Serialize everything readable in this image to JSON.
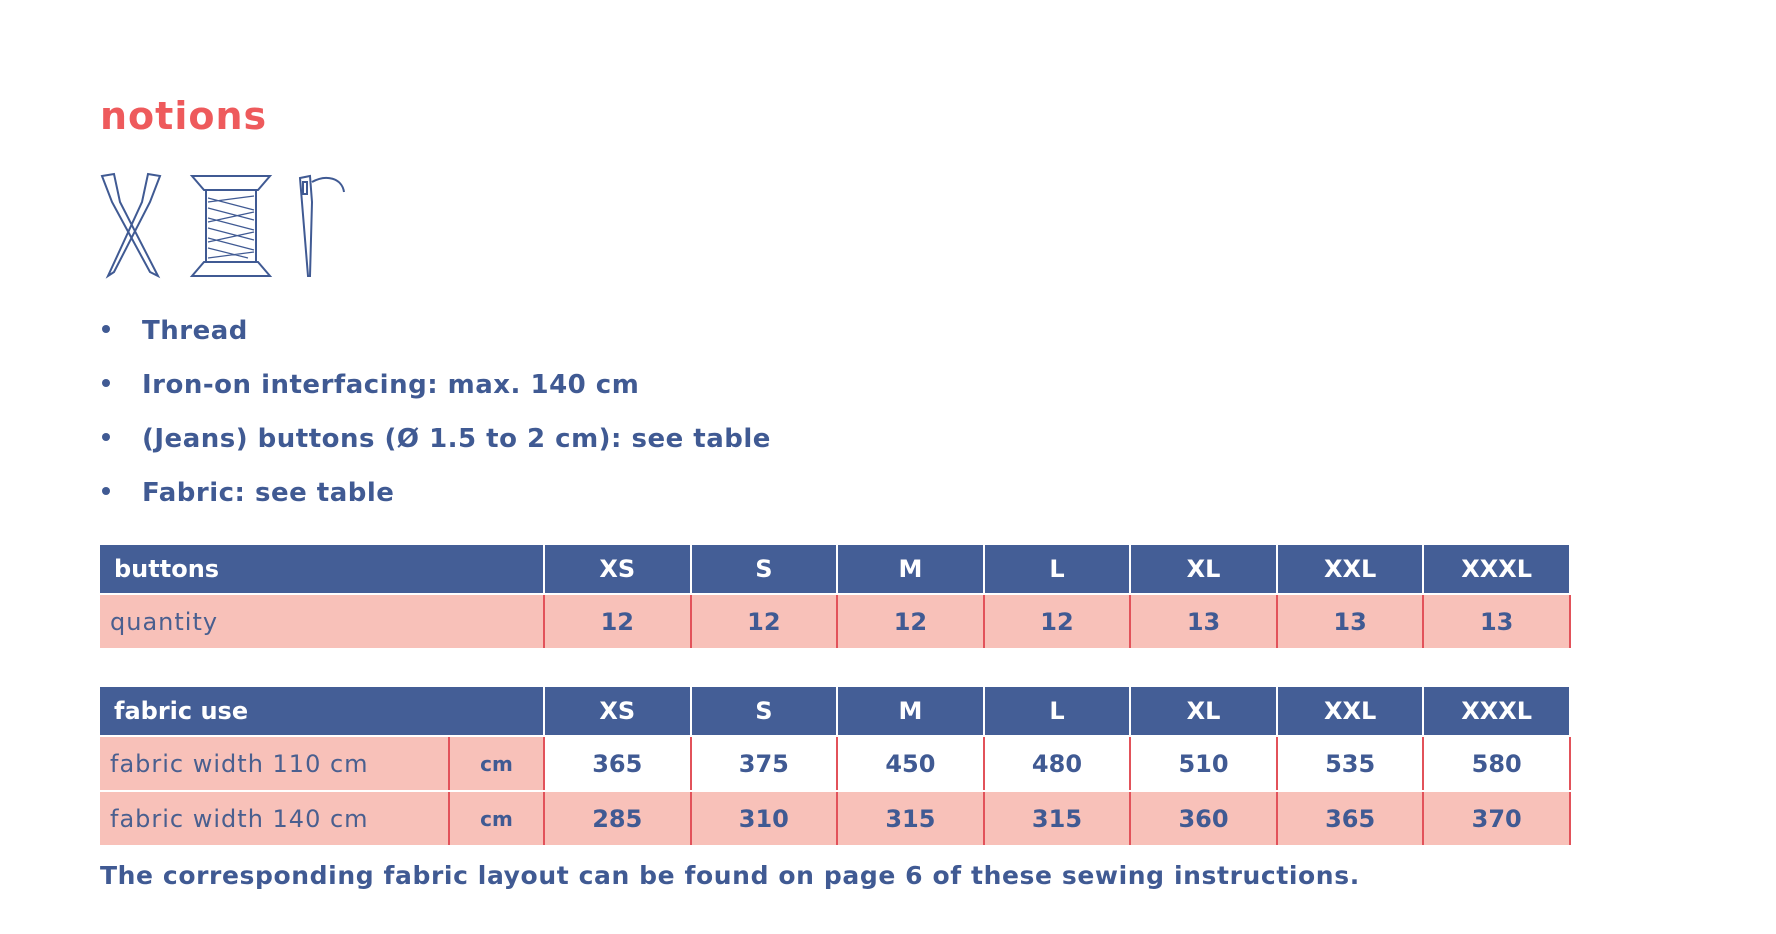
{
  "title": "notions",
  "items": [
    "Thread",
    "Iron-on interfacing: max. 140 cm",
    "(Jeans) buttons (Ø 1.5 to 2 cm): see table",
    "Fabric: see table"
  ],
  "buttons_table": {
    "header": "buttons",
    "sizes": [
      "XS",
      "S",
      "M",
      "L",
      "XL",
      "XXL",
      "XXXL"
    ],
    "rows": [
      {
        "label": "quantity",
        "values": [
          12,
          12,
          12,
          12,
          13,
          13,
          13
        ]
      }
    ]
  },
  "fabric_table": {
    "header": "fabric use",
    "sizes": [
      "XS",
      "S",
      "M",
      "L",
      "XL",
      "XXL",
      "XXXL"
    ],
    "rows": [
      {
        "label": "fabric width 110 cm",
        "unit": "cm",
        "values": [
          365,
          375,
          450,
          480,
          510,
          535,
          580
        ]
      },
      {
        "label": "fabric width 140 cm",
        "unit": "cm",
        "values": [
          285,
          310,
          315,
          315,
          360,
          365,
          370
        ]
      }
    ]
  },
  "footer": "The corresponding fabric layout can be found on page 6 of these sewing instructions."
}
